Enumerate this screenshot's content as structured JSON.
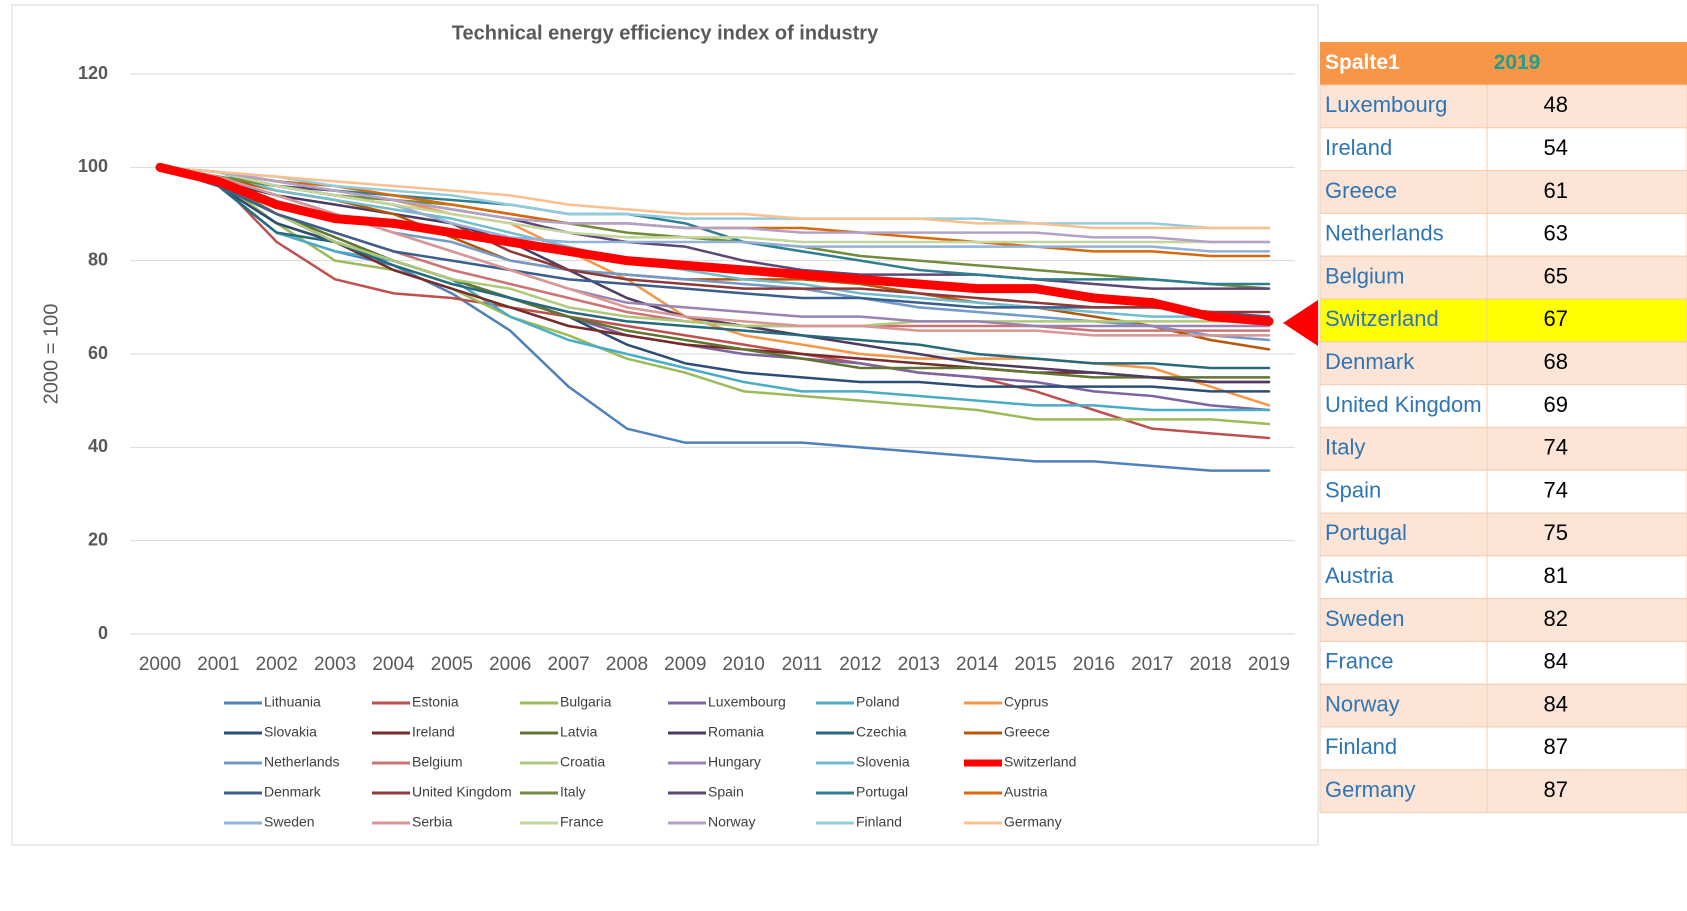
{
  "chart_data": {
    "type": "line",
    "title": "Technical energy efficiency index of industry",
    "ylabel": "2000 = 100",
    "categories": [
      "2000",
      "2001",
      "2002",
      "2003",
      "2004",
      "2005",
      "2006",
      "2007",
      "2008",
      "2009",
      "2010",
      "2011",
      "2012",
      "2013",
      "2014",
      "2015",
      "2016",
      "2017",
      "2018",
      "2019"
    ],
    "ylim": [
      0,
      120
    ],
    "yticks": [
      0,
      20,
      40,
      60,
      80,
      100,
      120
    ],
    "grid": true,
    "legend": "bottom",
    "series": [
      {
        "name": "Lithuania",
        "color": "#4F81BD",
        "values": [
          100,
          96,
          86,
          82,
          79,
          73,
          65,
          53,
          44,
          41,
          41,
          41,
          40,
          39,
          38,
          37,
          37,
          36,
          35,
          35
        ]
      },
      {
        "name": "Estonia",
        "color": "#C0504D",
        "values": [
          100,
          97,
          84,
          76,
          73,
          72,
          70,
          68,
          66,
          64,
          62,
          60,
          58,
          56,
          55,
          52,
          48,
          44,
          43,
          42
        ]
      },
      {
        "name": "Bulgaria",
        "color": "#9BBB59",
        "values": [
          100,
          97,
          88,
          80,
          78,
          74,
          68,
          64,
          59,
          56,
          52,
          51,
          50,
          49,
          48,
          46,
          46,
          46,
          46,
          45
        ]
      },
      {
        "name": "Luxembourg",
        "color": "#8064A2",
        "values": [
          100,
          96,
          88,
          84,
          80,
          76,
          72,
          68,
          64,
          62,
          60,
          59,
          58,
          56,
          55,
          54,
          52,
          51,
          49,
          48
        ]
      },
      {
        "name": "Poland",
        "color": "#4BACC6",
        "values": [
          100,
          96,
          86,
          82,
          80,
          76,
          68,
          63,
          60,
          57,
          54,
          52,
          52,
          51,
          50,
          49,
          49,
          48,
          48,
          48
        ]
      },
      {
        "name": "Cyprus",
        "color": "#F79646",
        "values": [
          100,
          99,
          96,
          94,
          93,
          90,
          88,
          82,
          76,
          68,
          64,
          62,
          60,
          59,
          59,
          59,
          58,
          57,
          53,
          49
        ]
      },
      {
        "name": "Slovakia",
        "color": "#2C4D75",
        "values": [
          100,
          96,
          88,
          84,
          80,
          76,
          72,
          68,
          62,
          58,
          56,
          55,
          54,
          54,
          53,
          53,
          53,
          53,
          52,
          52
        ]
      },
      {
        "name": "Ireland",
        "color": "#772C2A",
        "values": [
          100,
          97,
          90,
          84,
          78,
          74,
          70,
          66,
          64,
          62,
          61,
          60,
          59,
          58,
          57,
          56,
          56,
          55,
          54,
          54
        ]
      },
      {
        "name": "Latvia",
        "color": "#5F7530",
        "values": [
          100,
          97,
          90,
          85,
          80,
          76,
          72,
          68,
          65,
          63,
          61,
          59,
          57,
          57,
          57,
          56,
          55,
          55,
          55,
          55
        ]
      },
      {
        "name": "Romania",
        "color": "#4D3B62",
        "values": [
          100,
          97,
          94,
          92,
          90,
          88,
          84,
          78,
          72,
          68,
          66,
          64,
          62,
          60,
          58,
          57,
          56,
          55,
          54,
          54
        ]
      },
      {
        "name": "Czechia",
        "color": "#276A7C",
        "values": [
          100,
          96,
          86,
          84,
          79,
          75,
          72,
          69,
          67,
          66,
          65,
          64,
          63,
          62,
          60,
          59,
          58,
          58,
          57,
          57
        ]
      },
      {
        "name": "Greece",
        "color": "#B65708",
        "values": [
          100,
          98,
          95,
          93,
          90,
          85,
          80,
          78,
          77,
          76,
          76,
          76,
          75,
          73,
          71,
          70,
          68,
          66,
          63,
          61
        ]
      },
      {
        "name": "Netherlands",
        "color": "#729ACA",
        "values": [
          100,
          98,
          94,
          90,
          86,
          84,
          80,
          78,
          77,
          76,
          75,
          74,
          72,
          70,
          69,
          68,
          67,
          66,
          64,
          63
        ]
      },
      {
        "name": "Belgium",
        "color": "#CD7371",
        "values": [
          100,
          96,
          90,
          86,
          82,
          78,
          75,
          72,
          69,
          67,
          66,
          66,
          66,
          66,
          66,
          66,
          65,
          65,
          65,
          65
        ]
      },
      {
        "name": "Croatia",
        "color": "#AFC97A",
        "values": [
          100,
          96,
          90,
          84,
          80,
          76,
          74,
          70,
          68,
          67,
          66,
          66,
          66,
          67,
          67,
          67,
          67,
          67,
          67,
          67
        ]
      },
      {
        "name": "Hungary",
        "color": "#9983B5",
        "values": [
          100,
          98,
          94,
          90,
          86,
          82,
          78,
          74,
          71,
          70,
          69,
          68,
          68,
          67,
          67,
          66,
          66,
          66,
          66,
          66
        ]
      },
      {
        "name": "Slovenia",
        "color": "#6FBDD1",
        "values": [
          100,
          99,
          95,
          93,
          91,
          89,
          86,
          83,
          80,
          78,
          76,
          75,
          73,
          72,
          71,
          70,
          69,
          68,
          68,
          68
        ]
      },
      {
        "name": "Switzerland",
        "color": "#FF0000",
        "values": [
          100,
          97,
          92,
          89,
          88,
          86,
          84,
          82,
          80,
          79,
          78,
          77,
          76,
          75,
          74,
          74,
          72,
          71,
          68,
          67
        ]
      },
      {
        "name": "Denmark",
        "color": "#3A5F8B",
        "values": [
          100,
          96,
          90,
          86,
          82,
          80,
          78,
          76,
          75,
          74,
          73,
          72,
          72,
          71,
          70,
          70,
          70,
          70,
          69,
          68
        ]
      },
      {
        "name": "United Kingdom",
        "color": "#8E3A38",
        "values": [
          100,
          98,
          96,
          94,
          92,
          88,
          82,
          78,
          76,
          75,
          74,
          74,
          74,
          73,
          72,
          71,
          70,
          70,
          69,
          69
        ]
      },
      {
        "name": "Italy",
        "color": "#728C3B",
        "values": [
          100,
          98,
          96,
          94,
          93,
          92,
          90,
          88,
          86,
          85,
          84,
          83,
          81,
          80,
          79,
          78,
          77,
          76,
          75,
          74
        ]
      },
      {
        "name": "Spain",
        "color": "#5D4776",
        "values": [
          100,
          99,
          96,
          95,
          93,
          91,
          89,
          86,
          84,
          83,
          80,
          78,
          77,
          77,
          77,
          76,
          75,
          74,
          74,
          74
        ]
      },
      {
        "name": "Portugal",
        "color": "#2F7F93",
        "values": [
          100,
          99,
          97,
          95,
          94,
          93,
          92,
          90,
          90,
          88,
          84,
          82,
          80,
          78,
          77,
          76,
          76,
          76,
          75,
          75
        ]
      },
      {
        "name": "Austria",
        "color": "#D9690A",
        "values": [
          100,
          99,
          97,
          96,
          94,
          92,
          90,
          88,
          88,
          87,
          87,
          87,
          86,
          85,
          84,
          83,
          82,
          82,
          81,
          81
        ]
      },
      {
        "name": "Sweden",
        "color": "#93B1D9",
        "values": [
          100,
          99,
          96,
          94,
          92,
          88,
          85,
          84,
          84,
          84,
          84,
          83,
          83,
          83,
          83,
          83,
          83,
          83,
          82,
          82
        ]
      },
      {
        "name": "Serbia",
        "color": "#D99694",
        "values": [
          100,
          98,
          94,
          90,
          86,
          82,
          78,
          74,
          70,
          68,
          67,
          66,
          66,
          65,
          65,
          65,
          64,
          64,
          64,
          64
        ]
      },
      {
        "name": "France",
        "color": "#C3D69B",
        "values": [
          100,
          99,
          96,
          94,
          92,
          90,
          88,
          86,
          85,
          85,
          85,
          84,
          84,
          84,
          84,
          84,
          84,
          84,
          84,
          84
        ]
      },
      {
        "name": "Norway",
        "color": "#B3A2C7",
        "values": [
          100,
          99,
          97,
          95,
          93,
          91,
          89,
          88,
          88,
          87,
          87,
          86,
          86,
          86,
          86,
          86,
          85,
          85,
          84,
          84
        ]
      },
      {
        "name": "Finland",
        "color": "#93CDDD",
        "values": [
          100,
          99,
          98,
          96,
          95,
          94,
          92,
          90,
          90,
          89,
          89,
          89,
          89,
          89,
          89,
          88,
          88,
          88,
          87,
          87
        ]
      },
      {
        "name": "Germany",
        "color": "#FAC090",
        "values": [
          100,
          99,
          98,
          97,
          96,
          95,
          94,
          92,
          91,
          90,
          90,
          89,
          89,
          89,
          88,
          88,
          87,
          87,
          87,
          87
        ]
      }
    ]
  },
  "table": {
    "header": [
      "Spalte1",
      "2019"
    ],
    "highlight": "Switzerland",
    "rows": [
      [
        "Luxembourg",
        48
      ],
      [
        "Ireland",
        54
      ],
      [
        "Greece",
        61
      ],
      [
        "Netherlands",
        63
      ],
      [
        "Belgium",
        65
      ],
      [
        "Switzerland",
        67
      ],
      [
        "Denmark",
        68
      ],
      [
        "United Kingdom",
        69
      ],
      [
        "Italy",
        74
      ],
      [
        "Spain",
        74
      ],
      [
        "Portugal",
        75
      ],
      [
        "Austria",
        81
      ],
      [
        "Sweden",
        82
      ],
      [
        "France",
        84
      ],
      [
        "Norway",
        84
      ],
      [
        "Finland",
        87
      ],
      [
        "Germany",
        87
      ]
    ]
  }
}
